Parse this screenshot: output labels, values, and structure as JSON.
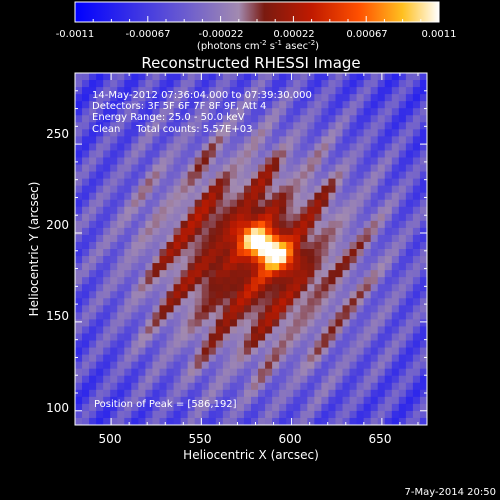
{
  "chart_data": {
    "type": "heatmap",
    "title": "Reconstructed RHESSI Image",
    "xlabel": "Heliocentric X (arcsec)",
    "ylabel": "Heliocentric Y (arcsec)",
    "xlim": [
      480,
      675
    ],
    "ylim": [
      92,
      290
    ],
    "x_ticks": [
      500,
      550,
      600,
      650
    ],
    "y_ticks": [
      100,
      150,
      200,
      250
    ],
    "colorbar": {
      "range": [
        -0.0011,
        0.0011
      ],
      "tick_labels": [
        "-0.0011",
        "-0.00067",
        "-0.00022",
        "0.00022",
        "0.00067",
        "0.0011"
      ],
      "unit_prefix": "(photons cm",
      "unit_exp1": "-2",
      "unit_mid": " s",
      "unit_exp2": "-1",
      "unit_mid2": " asec",
      "unit_exp3": "-2",
      "unit_suffix": ")"
    },
    "annotations": {
      "line1": "14-May-2012 07:36:04.000 to 07:39:30.000",
      "line2": "Detectors: 3F 5F 6F 7F 8F 9F, Att 4",
      "line3": "Energy Range: 25.0 - 50.0 keV",
      "line4": "Clean     Total counts: 5.57E+03",
      "peak": "Position of Peak = [586,192]"
    },
    "peak": {
      "x": 586,
      "y": 192
    },
    "grid": false
  },
  "footer": {
    "date": "7-May-2014 20:50"
  }
}
